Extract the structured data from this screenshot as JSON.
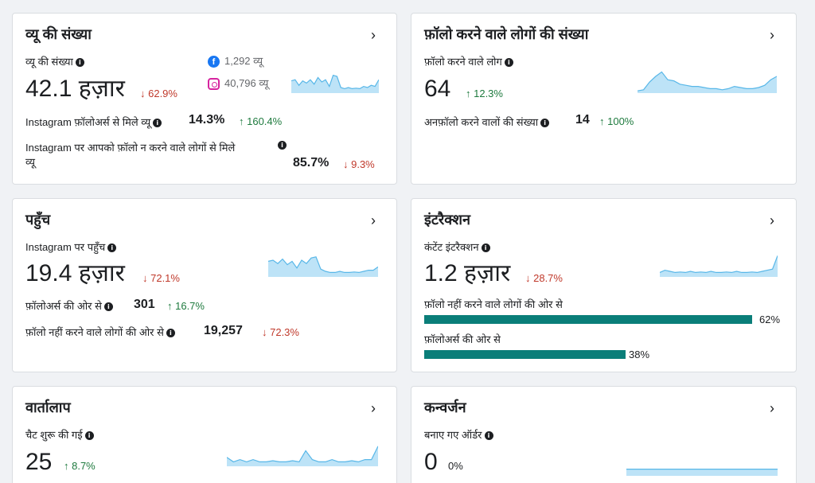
{
  "views": {
    "title": "व्यू की संख्या",
    "metric_label": "व्यू की संख्या",
    "value": "42.1 हज़ार",
    "change": "↓ 62.9%",
    "facebook_views": "1,292 व्यू",
    "instagram_views": "40,796 व्यू",
    "followers_label": "Instagram फ़ॉलोअर्स से मिले व्यू",
    "followers_value": "14.3%",
    "followers_change": "↑ 160.4%",
    "nonfollowers_label_1": "Instagram पर आपको फ़ॉलो न करने वाले लोगों से मिले",
    "nonfollowers_label_2": "व्यू",
    "nonfollowers_value": "85.7%",
    "nonfollowers_change": "↓ 9.3%",
    "spark": [
      0.55,
      0.6,
      0.35,
      0.55,
      0.45,
      0.6,
      0.4,
      0.7,
      0.5,
      0.6,
      0.3,
      0.8,
      0.75,
      0.25,
      0.2,
      0.25,
      0.2,
      0.22,
      0.2,
      0.3,
      0.25,
      0.35,
      0.3,
      0.6
    ]
  },
  "follows": {
    "title": "फ़ॉलो करने वाले लोगों की संख्या",
    "metric_label": "फ़ॉलो करने वाले लोग",
    "value": "64",
    "change": "↑ 12.3%",
    "unfollow_label": "अनफ़ॉलो करने वालों की संख्या",
    "unfollow_value": "14",
    "unfollow_change": "↑ 100%",
    "spark": [
      0.1,
      0.15,
      0.5,
      0.75,
      0.95,
      0.6,
      0.55,
      0.4,
      0.35,
      0.3,
      0.3,
      0.25,
      0.2,
      0.2,
      0.15,
      0.2,
      0.3,
      0.25,
      0.2,
      0.2,
      0.25,
      0.35,
      0.6,
      0.75
    ]
  },
  "reach": {
    "title": "पहुँच",
    "metric_label": "Instagram पर पहुँच",
    "value": "19.4 हज़ार",
    "change": "↓ 72.1%",
    "followers_label": "फ़ॉलोअर्स की ओर से",
    "followers_value": "301",
    "followers_change": "↑ 16.7%",
    "nonfollowers_label": "फ़ॉलो नहीं करने वाले लोगों की ओर से",
    "nonfollowers_value": "19,257",
    "nonfollowers_change": "↓ 72.3%",
    "spark": [
      0.7,
      0.75,
      0.6,
      0.8,
      0.55,
      0.7,
      0.4,
      0.75,
      0.6,
      0.85,
      0.9,
      0.35,
      0.25,
      0.2,
      0.2,
      0.25,
      0.2,
      0.2,
      0.22,
      0.2,
      0.25,
      0.3,
      0.3,
      0.45
    ]
  },
  "interactions": {
    "title": "इंटरैक्शन",
    "metric_label": "कंटेंट इंटरैक्शन",
    "value": "1.2 हज़ार",
    "change": "↓ 28.7%",
    "bar1_label": "फ़ॉलो नहीं करने वाले लोगों की ओर से",
    "bar1_pct": "62%",
    "bar1_value": 0.62,
    "bar2_label": "फ़ॉलोअर्स की ओर से",
    "bar2_pct": "38%",
    "bar2_value": 0.38,
    "spark": [
      0.2,
      0.3,
      0.25,
      0.2,
      0.22,
      0.2,
      0.25,
      0.2,
      0.22,
      0.2,
      0.25,
      0.2,
      0.2,
      0.22,
      0.2,
      0.25,
      0.2,
      0.2,
      0.22,
      0.2,
      0.25,
      0.3,
      0.35,
      0.95
    ]
  },
  "conversations": {
    "title": "वार्तालाप",
    "metric_label": "चैट शुरू की गई",
    "value": "25",
    "change": "↑ 8.7%",
    "spark": [
      0.4,
      0.2,
      0.3,
      0.2,
      0.3,
      0.2,
      0.2,
      0.25,
      0.2,
      0.2,
      0.25,
      0.2,
      0.7,
      0.3,
      0.2,
      0.2,
      0.3,
      0.2,
      0.2,
      0.25,
      0.2,
      0.3,
      0.3,
      0.9
    ]
  },
  "conversions": {
    "title": "कन्वर्जन",
    "metric_label": "बनाए गए ऑर्डर",
    "value": "0",
    "change": "0%",
    "spark": [
      0.3,
      0.3,
      0.3,
      0.3,
      0.3,
      0.3,
      0.3,
      0.3,
      0.3,
      0.3,
      0.3,
      0.3,
      0.3,
      0.3,
      0.3,
      0.3,
      0.3,
      0.3,
      0.3,
      0.3,
      0.3,
      0.3,
      0.3,
      0.3
    ]
  },
  "colors": {
    "spark_fill": "#bde3f7",
    "spark_line": "#58b7e8",
    "bar": "#0a7e79",
    "down": "#c0392b",
    "up": "#1e7a3e"
  }
}
